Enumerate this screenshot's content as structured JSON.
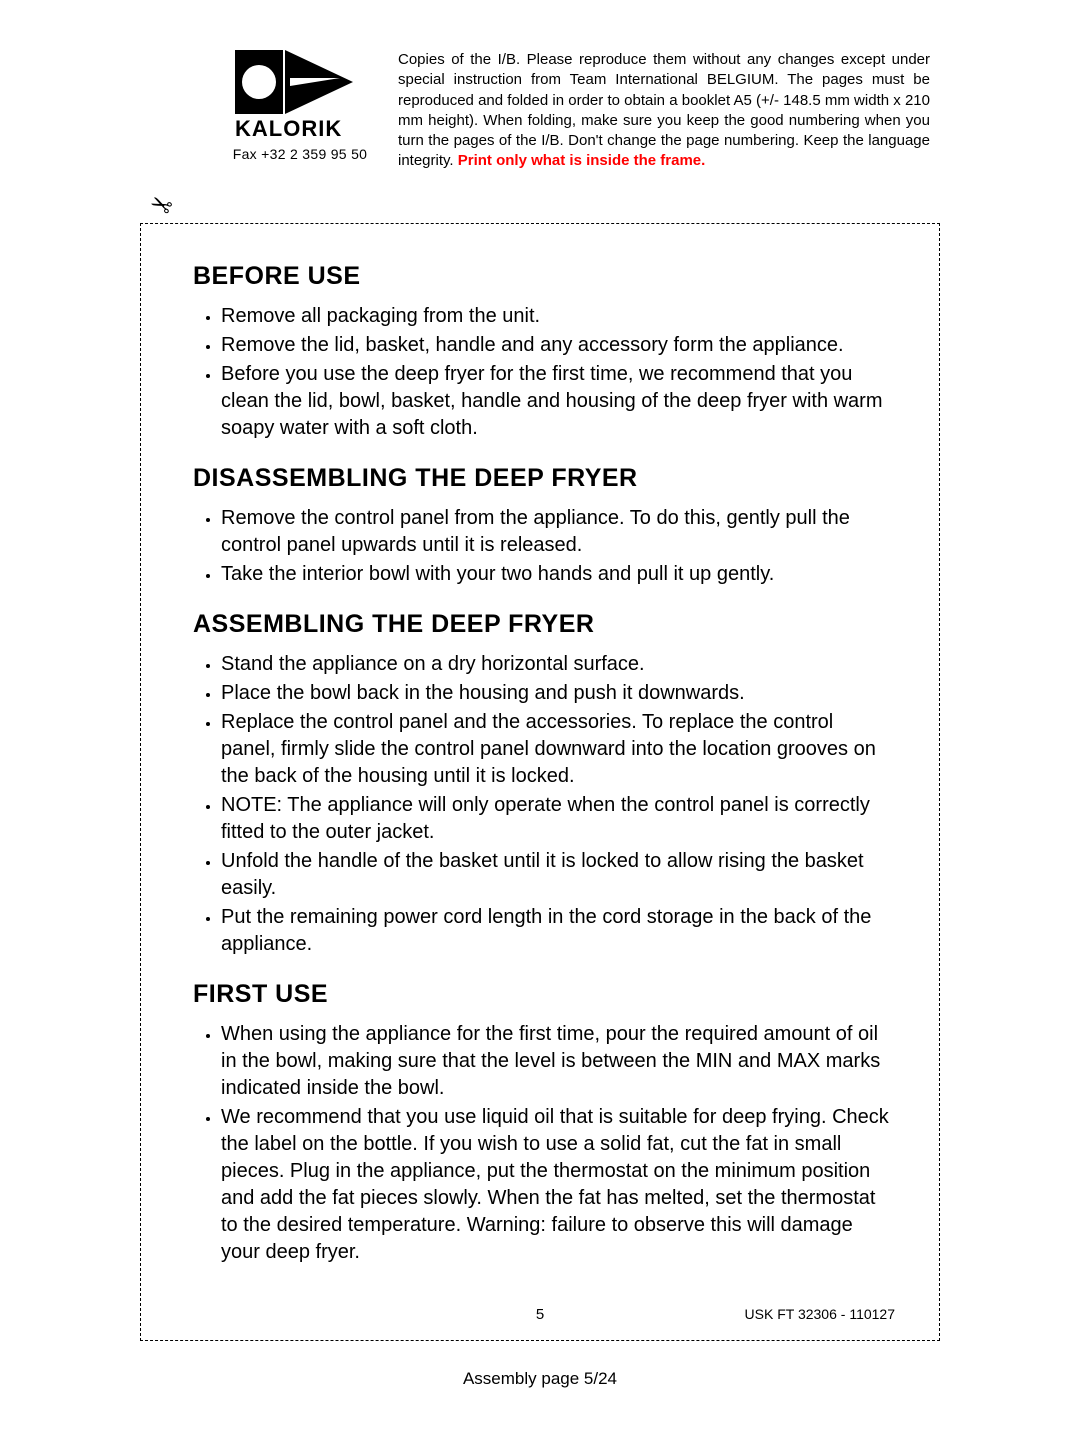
{
  "header": {
    "fax": "Fax +32 2 359 95 50",
    "instructions_plain": "Copies of the I/B. Please reproduce them without any changes except under special instruction from Team International BELGIUM. The pages must be reproduced and folded in order to obtain a booklet A5 (+/- 148.5 mm width x 210 mm height). When folding, make sure you keep the good numbering when you turn the pages of the I/B. Don't change the page numbering. Keep the language integrity. ",
    "instructions_red": "Print only what is inside the frame."
  },
  "sections": [
    {
      "title": "BEFORE USE",
      "items": [
        "Remove all packaging from the unit.",
        "Remove the lid, basket, handle and any accessory form the appliance.",
        "Before you use the deep fryer for the first time, we recommend that you clean the lid, bowl, basket, handle and housing of the deep fryer with warm soapy water with a soft cloth."
      ]
    },
    {
      "title": "DISASSEMBLING THE DEEP FRYER",
      "items": [
        "Remove the control panel from the appliance. To do this, gently pull the control panel upwards until it is released.",
        "Take the interior bowl with your two hands and pull it up gently."
      ]
    },
    {
      "title": "ASSEMBLING THE DEEP FRYER",
      "items": [
        "Stand the appliance on a dry horizontal surface.",
        "Place the bowl back in the housing and push it downwards.",
        "Replace the control panel and the accessories. To replace the control panel, firmly slide the control panel downward into the location grooves on the back of the housing until it is locked.",
        "NOTE: The appliance will only operate when the control panel is correctly fitted to the outer jacket.",
        "Unfold the handle of the basket until it is locked to allow rising the basket easily.",
        "Put the remaining power cord length in the cord storage in the back of the appliance."
      ]
    },
    {
      "title": "FIRST USE",
      "items": [
        "When using the appliance for the first time, pour the required amount of oil in the bowl, making sure that the level is between the MIN and MAX marks indicated inside the bowl.",
        "We recommend that you use liquid oil that is suitable for deep frying. Check the label on the bottle. If you wish to use a solid fat, cut the fat in small pieces. Plug in the appliance, put the thermostat on the minimum position and add the fat pieces slowly. When the fat has melted, set the thermostat to the desired temperature. Warning: failure to observe this will damage your deep fryer."
      ]
    }
  ],
  "footer": {
    "page_number": "5",
    "doc_ref": "USK FT 32306 - 110127",
    "assembly": "Assembly page 5/24"
  },
  "style": {
    "background_color": "#ffffff",
    "text_color": "#000000",
    "accent_color": "#ff0000",
    "heading_fontsize_pt": 19,
    "body_fontsize_pt": 15,
    "header_fontsize_pt": 11,
    "frame_border": "1px dashed #000000"
  }
}
